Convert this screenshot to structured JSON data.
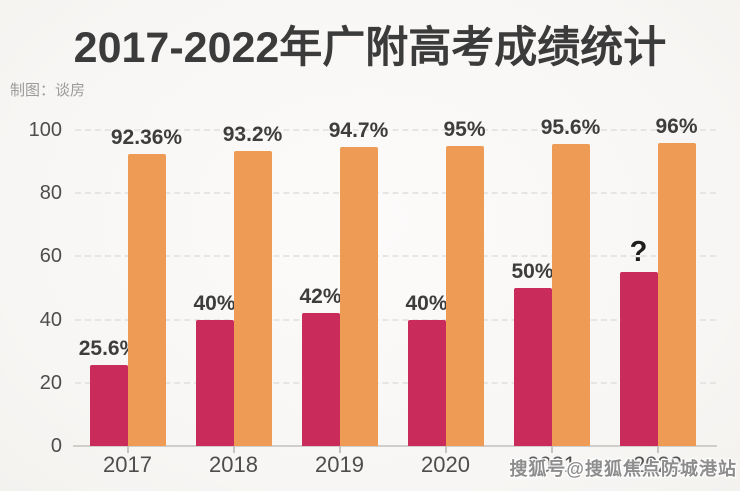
{
  "header": {
    "title": "2017-2022年广附高考成绩统计",
    "credit": "制图：谈房"
  },
  "watermark": "搜狐号@搜狐焦点防城港站",
  "colors": {
    "red_bar": "#C92B5B",
    "orange_bar": "#EE9C55",
    "title_text": "#3B3B3B",
    "value_label_text": "#3D3D3D",
    "axis_text": "#4D4D4D",
    "credit_text": "#9B9B9B",
    "gridline": "#E7E5E2",
    "axis_line": "#D0CECB",
    "background": "#F9F8F6",
    "watermark_text": "#8D8D8D"
  },
  "chart_data": {
    "type": "bar",
    "title": "2017-2022年广附高考成绩统计",
    "categories": [
      "2017",
      "2018",
      "2019",
      "2020",
      "2021",
      "2022"
    ],
    "series": [
      {
        "id": "red",
        "color_key": "red_bar",
        "values": [
          25.6,
          40,
          42,
          40,
          50,
          55
        ],
        "labels": [
          "25.6%",
          "40%",
          "42%",
          "40%",
          "50%",
          "?"
        ]
      },
      {
        "id": "orange",
        "color_key": "orange_bar",
        "values": [
          92.36,
          93.2,
          94.7,
          95,
          95.6,
          96
        ],
        "labels": [
          "92.36%",
          "93.2%",
          "94.7%",
          "95%",
          "95.6%",
          "96%"
        ]
      }
    ],
    "ylim": [
      0,
      100
    ],
    "yticks": [
      0,
      20,
      40,
      60,
      80,
      100
    ],
    "xlabel": "",
    "ylabel": "",
    "grid": "horizontal-dashed",
    "legend": "none"
  }
}
